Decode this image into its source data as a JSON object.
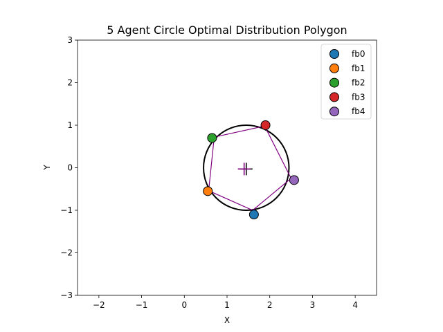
{
  "chart_data": {
    "type": "scatter",
    "title": "5 Agent Circle Optimal Distribution Polygon",
    "xlabel": "X",
    "ylabel": "Y",
    "xlim": [
      -2.5,
      4.5
    ],
    "ylim": [
      -3,
      3
    ],
    "xticks": [
      -2,
      -1,
      0,
      1,
      2,
      3,
      4
    ],
    "yticks": [
      -3,
      -2,
      -1,
      0,
      1,
      2,
      3
    ],
    "xtick_labels": [
      "−2",
      "−1",
      "0",
      "1",
      "2",
      "3",
      "4"
    ],
    "ytick_labels": [
      "−3",
      "−2",
      "−1",
      "0",
      "1",
      "2",
      "3"
    ],
    "grid": false,
    "legend_position": "top-right",
    "circle": {
      "center": [
        1.45,
        0.0
      ],
      "radius": 1.0,
      "color": "#000000"
    },
    "polygon": {
      "color": "#800080",
      "vertices": [
        [
          1.6,
          -1.0
        ],
        [
          2.5,
          -0.25
        ],
        [
          1.88,
          0.98
        ],
        [
          0.7,
          0.72
        ],
        [
          0.57,
          -0.54
        ]
      ]
    },
    "markers": [
      {
        "x": 1.45,
        "y": -0.03,
        "color": "#000000",
        "symbol": "+"
      },
      {
        "x": 1.4,
        "y": -0.03,
        "color": "#800080",
        "symbol": "+"
      }
    ],
    "series": [
      {
        "name": "fb0",
        "color": "#1f77b4",
        "x": [
          1.63
        ],
        "y": [
          -1.1
        ]
      },
      {
        "name": "fb1",
        "color": "#ff7f0e",
        "x": [
          0.55
        ],
        "y": [
          -0.55
        ]
      },
      {
        "name": "fb2",
        "color": "#2ca02c",
        "x": [
          0.65
        ],
        "y": [
          0.7
        ]
      },
      {
        "name": "fb3",
        "color": "#d62728",
        "x": [
          1.9
        ],
        "y": [
          1.0
        ]
      },
      {
        "name": "fb4",
        "color": "#9467bd",
        "x": [
          2.57
        ],
        "y": [
          -0.29
        ]
      }
    ]
  }
}
